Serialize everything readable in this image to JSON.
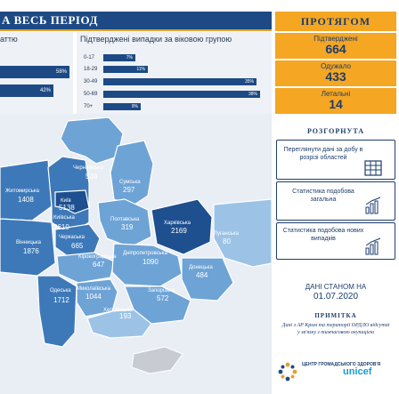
{
  "header": {
    "period_title": "А ВЕСЬ ПЕРІОД",
    "right_title": "ПРОТЯГОМ"
  },
  "gender": {
    "title": "аттю",
    "bars": [
      {
        "label": "58%",
        "value": 58
      },
      {
        "label": "42%",
        "value": 42
      }
    ]
  },
  "age": {
    "title": "Підтверджені випадки за віковою групою",
    "rows": [
      {
        "group": "0-17",
        "label": "7%",
        "value": 7
      },
      {
        "group": "18-29",
        "label": "11%",
        "value": 11
      },
      {
        "group": "30-49",
        "label": "35%",
        "value": 35
      },
      {
        "group": "50-69",
        "label": "38%",
        "value": 38
      },
      {
        "group": "70+",
        "label": "9%",
        "value": 9
      }
    ]
  },
  "stats": [
    {
      "label": "Підтверджені",
      "value": "664"
    },
    {
      "label": "Одужало",
      "value": "433"
    },
    {
      "label": "Летальні",
      "value": "14"
    }
  ],
  "map": {
    "regions": [
      {
        "name": "Чернігівська",
        "value": "538"
      },
      {
        "name": "Сумська",
        "value": "297"
      },
      {
        "name": "Житомирська",
        "value": "1408"
      },
      {
        "name": "Київ",
        "value": "5138"
      },
      {
        "name": "Київська",
        "value": "2610"
      },
      {
        "name": "Полтавська",
        "value": "319"
      },
      {
        "name": "Харківська",
        "value": "2169"
      },
      {
        "name": "Луганська",
        "value": "80"
      },
      {
        "name": "Вінницька",
        "value": "1876"
      },
      {
        "name": "Черкаська",
        "value": "665"
      },
      {
        "name": "Кіровоградська",
        "value": "647"
      },
      {
        "name": "Дніпропетровська",
        "value": "1090"
      },
      {
        "name": "Донецька",
        "value": "484"
      },
      {
        "name": "Одеська",
        "value": "1712"
      },
      {
        "name": "Миколаївська",
        "value": "1044"
      },
      {
        "name": "Запорізька",
        "value": "572"
      },
      {
        "name": "Херсонська",
        "value": "193"
      }
    ]
  },
  "sidebar": {
    "heading": "РОЗГОРНУТА",
    "cards": [
      {
        "label": "Переглянути дані за добу в розрізі областей",
        "icon": "table-icon"
      },
      {
        "label": "Статистика подобова загальна",
        "icon": "bar-chart-icon"
      },
      {
        "label": "Статистика подобова нових випадків",
        "icon": "bar-chart-icon"
      }
    ]
  },
  "as_of": {
    "label": "ДАНІ СТАНОМ НА",
    "date": "01.07.2020"
  },
  "note": {
    "heading": "ПРИМІТКА",
    "text": "Дані з АР Крим та території ОРДЛО відсутні у зв'язку з тимчасовою окупацією"
  },
  "logos": {
    "cgz": "ЦЕНТР ГРОМАДСЬКОГО ЗДОРОВ'Я",
    "unicef": "unicef"
  },
  "colors": {
    "navy": "#1d4a84",
    "orange": "#f5a623",
    "map_dark": "#1e4f8e",
    "map_mid": "#3d79b9",
    "map_light": "#6ea3d6",
    "map_pale": "#9cc3e6",
    "crimea_grey": "#c8ccd2"
  }
}
